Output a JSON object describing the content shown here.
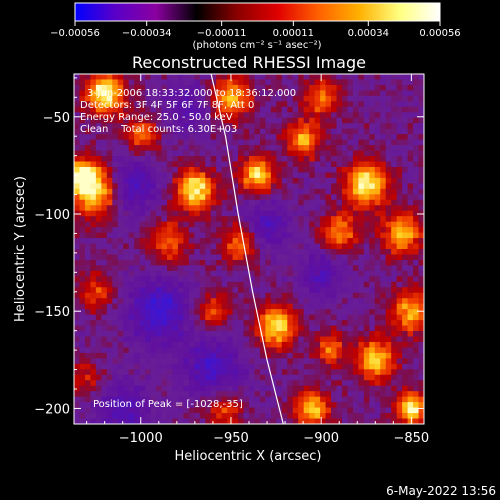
{
  "chart_data": {
    "type": "heatmap",
    "title": "Reconstructed RHESSI Image",
    "xlabel": "Heliocentric X (arcsec)",
    "ylabel": "Heliocentric Y (arcsec)",
    "xlim": [
      -1037,
      -843
    ],
    "ylim": [
      -208,
      -28
    ],
    "x_ticks": [
      -1000,
      -950,
      -900,
      -850
    ],
    "y_ticks": [
      -50,
      -100,
      -150,
      -200
    ],
    "x_tick_labels": [
      "−1000",
      "−950",
      "−900",
      "−850"
    ],
    "y_tick_labels": [
      "−50",
      "−100",
      "−150",
      "−200"
    ],
    "colorbar": {
      "range": [
        -0.00056,
        0.00056
      ],
      "ticks": [
        -0.00056,
        -0.00034,
        -0.00011,
        0.00011,
        0.00034,
        0.00056
      ],
      "tick_labels": [
        "−0.00056",
        "−0.00034",
        "−0.00011",
        "0.00011",
        "0.00034",
        "0.00056"
      ],
      "unit_label": "(photons cm⁻² s⁻¹ asec⁻²)",
      "colors": [
        "#0000ff",
        "#5a00c8",
        "#8a00a0",
        "#000000",
        "#8b0000",
        "#e00000",
        "#ff6000",
        "#ffb000",
        "#ffff80",
        "#ffffff"
      ]
    },
    "info_lines": [
      "3-Jun-2006 18:33:32.000 to 18:36:12.000",
      "Detectors: 3F 4F 5F 6F 7F 8F, Att 0",
      "Energy Range: 25.0 - 50.0 keV",
      "Clean    Total counts: 6.30E+03"
    ],
    "peak_label": "Position of Peak = [-1028,-35]",
    "limb_curve": [
      [
        -961,
        -28
      ],
      [
        -953,
        -60
      ],
      [
        -946,
        -100
      ],
      [
        -938,
        -140
      ],
      [
        -930,
        -175
      ],
      [
        -921,
        -208
      ]
    ],
    "hot_spots": [
      {
        "x": -1020,
        "y": -38,
        "v": 1.0,
        "r": 9
      },
      {
        "x": -1025,
        "y": -88,
        "v": 0.95,
        "r": 11
      },
      {
        "x": -1033,
        "y": -80,
        "v": 0.7,
        "r": 7
      },
      {
        "x": -970,
        "y": -88,
        "v": 0.95,
        "r": 9
      },
      {
        "x": -985,
        "y": -115,
        "v": 0.55,
        "r": 9
      },
      {
        "x": -1000,
        "y": -60,
        "v": 0.6,
        "r": 8
      },
      {
        "x": -950,
        "y": -40,
        "v": 0.75,
        "r": 9
      },
      {
        "x": -935,
        "y": -80,
        "v": 0.85,
        "r": 8
      },
      {
        "x": -945,
        "y": -115,
        "v": 0.6,
        "r": 8
      },
      {
        "x": -900,
        "y": -40,
        "v": 0.6,
        "r": 8
      },
      {
        "x": -910,
        "y": -62,
        "v": 0.7,
        "r": 8
      },
      {
        "x": -875,
        "y": -85,
        "v": 0.95,
        "r": 10
      },
      {
        "x": -890,
        "y": -110,
        "v": 0.7,
        "r": 8
      },
      {
        "x": -855,
        "y": -110,
        "v": 0.8,
        "r": 9
      },
      {
        "x": -850,
        "y": -150,
        "v": 0.75,
        "r": 9
      },
      {
        "x": -925,
        "y": -158,
        "v": 0.9,
        "r": 9
      },
      {
        "x": -960,
        "y": -150,
        "v": 0.5,
        "r": 8
      },
      {
        "x": -1025,
        "y": -140,
        "v": 0.45,
        "r": 8
      },
      {
        "x": -1030,
        "y": -185,
        "v": 0.35,
        "r": 8
      },
      {
        "x": -955,
        "y": -200,
        "v": 0.5,
        "r": 9
      },
      {
        "x": -905,
        "y": -200,
        "v": 0.8,
        "r": 8
      },
      {
        "x": -870,
        "y": -175,
        "v": 0.85,
        "r": 9
      },
      {
        "x": -850,
        "y": -200,
        "v": 0.95,
        "r": 7
      },
      {
        "x": -895,
        "y": -170,
        "v": 0.6,
        "r": 7
      }
    ],
    "cold_spots": [
      {
        "x": -990,
        "y": -150,
        "v": -0.7,
        "r": 14
      },
      {
        "x": -960,
        "y": -180,
        "v": -0.6,
        "r": 13
      },
      {
        "x": -1005,
        "y": -85,
        "v": -0.55,
        "r": 12
      },
      {
        "x": -930,
        "y": -105,
        "v": -0.5,
        "r": 10
      },
      {
        "x": -900,
        "y": -130,
        "v": -0.45,
        "r": 10
      },
      {
        "x": -1010,
        "y": -200,
        "v": -0.5,
        "r": 12
      },
      {
        "x": -975,
        "y": -45,
        "v": -0.45,
        "r": 10
      }
    ]
  },
  "footer": {
    "date": "6-May-2022 13:56"
  }
}
